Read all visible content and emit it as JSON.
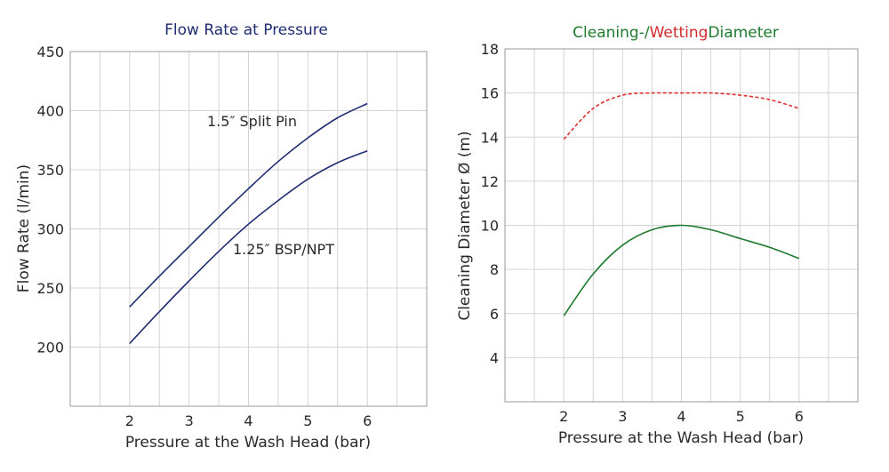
{
  "chart_data": [
    {
      "type": "line",
      "title": "Flow Rate at Pressure",
      "xlabel": "Pressure at the Wash Head (bar)",
      "ylabel": "Flow Rate (l/min)",
      "xlim": [
        1,
        7
      ],
      "ylim": [
        150,
        450
      ],
      "xticks": [
        2,
        3,
        4,
        5,
        6
      ],
      "yticks": [
        200,
        250,
        300,
        350,
        400,
        450
      ],
      "grid": true,
      "series": [
        {
          "name": "1.5″ Split Pin",
          "x": [
            2,
            2.5,
            3,
            3.5,
            4,
            4.5,
            5,
            5.5,
            6
          ],
          "y": [
            234,
            260,
            285,
            310,
            334,
            357,
            377,
            394,
            406
          ]
        },
        {
          "name": "1.25″ BSP/NPT",
          "x": [
            2,
            2.5,
            3,
            3.5,
            4,
            4.5,
            5,
            5.5,
            6
          ],
          "y": [
            203,
            230,
            256,
            281,
            304,
            324,
            342,
            356,
            366
          ]
        }
      ]
    },
    {
      "type": "line",
      "title_parts": [
        "Cleaning-/",
        "Wetting",
        "Diameter"
      ],
      "xlabel": "Pressure at the Wash Head (bar)",
      "ylabel": "Cleaning Diameter Ø (m)",
      "xlim": [
        1,
        7
      ],
      "ylim": [
        2,
        18
      ],
      "xticks": [
        2,
        3,
        4,
        5,
        6
      ],
      "yticks": [
        4,
        6,
        8,
        10,
        12,
        14,
        16,
        18
      ],
      "grid": true,
      "series": [
        {
          "x": [
            2,
            2.5,
            3,
            3.5,
            4,
            4.5,
            5,
            5.5,
            6
          ],
          "y": [
            13.9,
            15.3,
            15.9,
            16.0,
            16.0,
            16.0,
            15.9,
            15.7,
            15.3
          ],
          "style": "dashed",
          "color": "#e03030"
        },
        {
          "x": [
            2,
            2.5,
            3,
            3.5,
            4,
            4.5,
            5,
            5.5,
            6
          ],
          "y": [
            5.9,
            7.8,
            9.1,
            9.8,
            10.0,
            9.8,
            9.4,
            9.0,
            8.5
          ],
          "style": "solid",
          "color": "#1e7a2e"
        }
      ]
    }
  ],
  "colors": {
    "navy": "#1f2d72",
    "green": "#1e7a2e",
    "red": "#d42a2a",
    "grid": "#d4d4d4"
  }
}
